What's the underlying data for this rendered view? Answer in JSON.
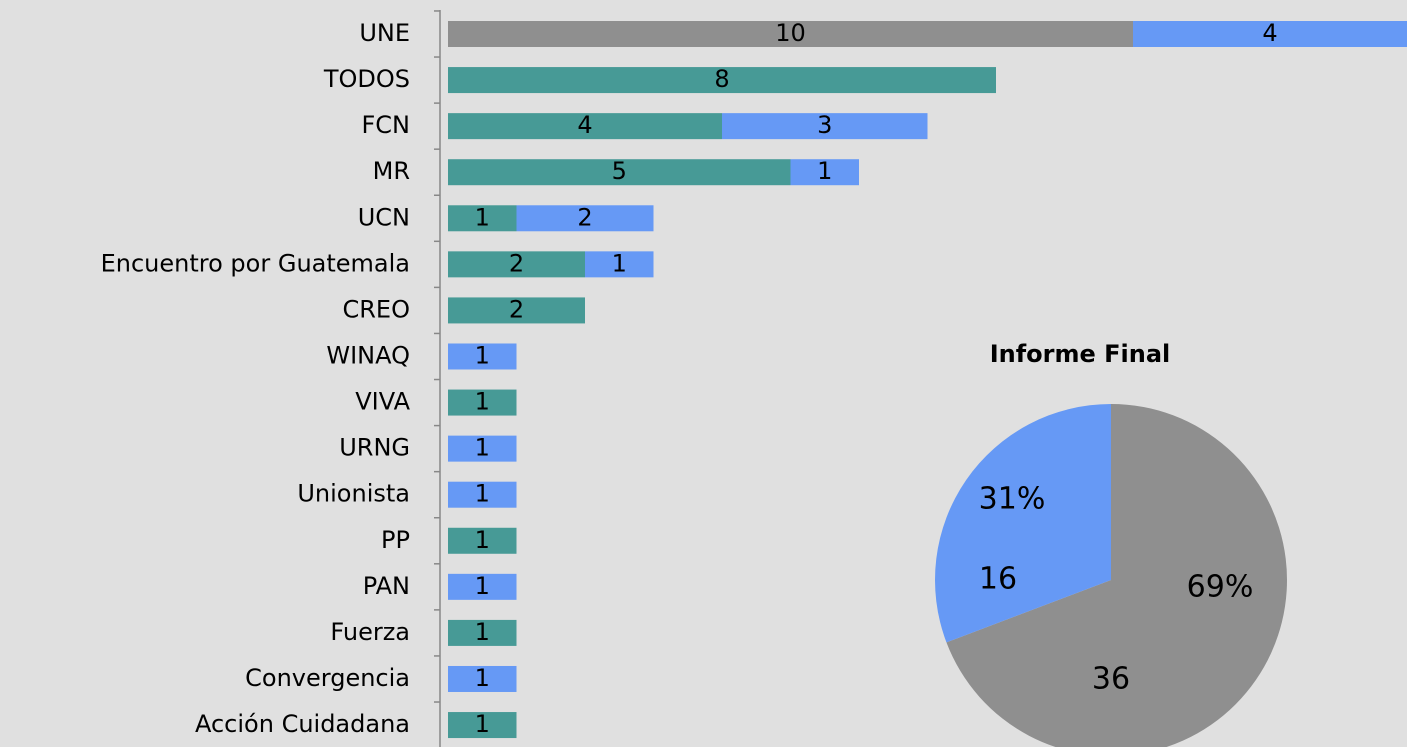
{
  "chart_data": [
    {
      "type": "bar",
      "orientation": "horizontal",
      "stacked": true,
      "categories": [
        "UNE",
        "TODOS",
        "FCN",
        "MR",
        "UCN",
        "Encuentro por Guatemala",
        "CREO",
        "WINAQ",
        "VIVA",
        "URNG",
        "Unionista",
        "PP",
        "PAN",
        "Fuerza",
        "Convergencia",
        "Acción Cuidadana"
      ],
      "series": [
        {
          "color": "#8f8f8f",
          "values": [
            10,
            null,
            null,
            null,
            null,
            null,
            null,
            null,
            null,
            null,
            null,
            null,
            null,
            null,
            null,
            null
          ]
        },
        {
          "color": "#479a96",
          "values": [
            null,
            8,
            4,
            5,
            1,
            2,
            2,
            null,
            1,
            null,
            null,
            1,
            null,
            1,
            null,
            1
          ]
        },
        {
          "color": "#6699f5",
          "values": [
            4,
            null,
            3,
            1,
            2,
            1,
            null,
            1,
            null,
            1,
            1,
            null,
            1,
            null,
            1,
            null
          ]
        }
      ],
      "xlim": [
        0,
        14
      ]
    },
    {
      "type": "pie",
      "title": "Informe Final",
      "values": [
        36,
        16
      ],
      "percent_labels": [
        "69%",
        "31%"
      ],
      "colors": [
        "#8f8f8f",
        "#6699f5"
      ]
    }
  ]
}
